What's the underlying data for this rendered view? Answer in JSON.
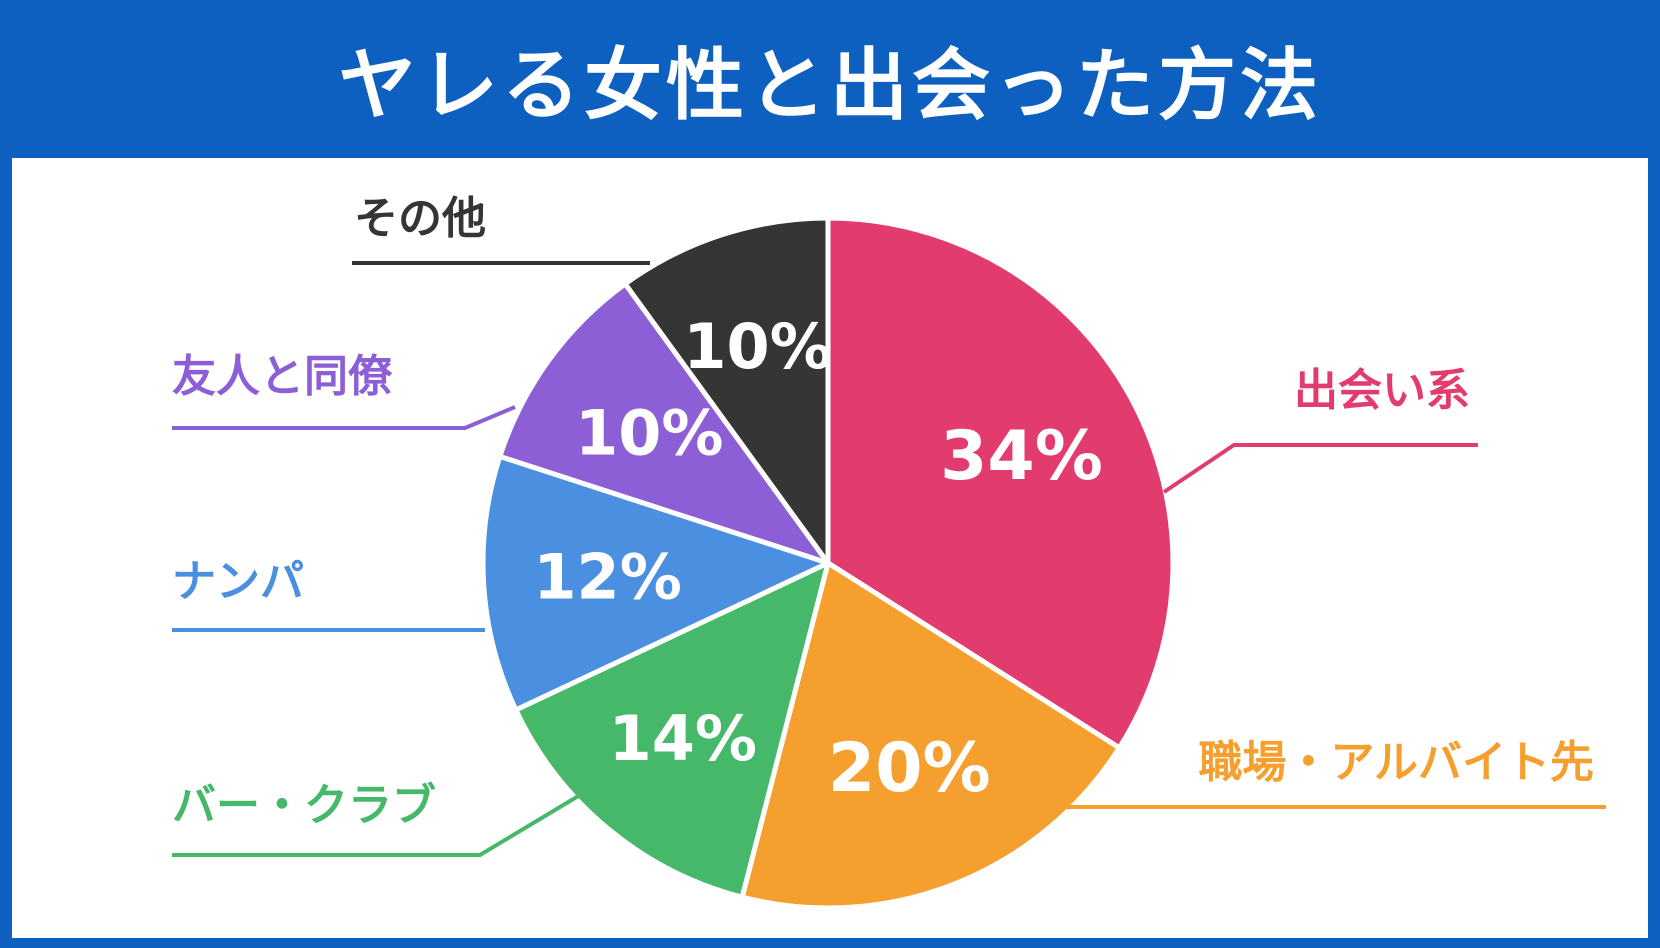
{
  "title": "ヤレる女性と出会った方法",
  "colors": {
    "header": "#0d5fc0",
    "panel": "#ffffff"
  },
  "chart_data": {
    "type": "pie",
    "title": "ヤレる女性と出会った方法",
    "start": "top",
    "direction": "clockwise",
    "slices": [
      {
        "label": "出会い系",
        "value": 34,
        "value_label": "34%",
        "color": "#e23b6e"
      },
      {
        "label": "職場・アルバイト先",
        "value": 20,
        "value_label": "20%",
        "color": "#f5a02e"
      },
      {
        "label": "バー・クラブ",
        "value": 14,
        "value_label": "14%",
        "color": "#46b86a"
      },
      {
        "label": "ナンパ",
        "value": 12,
        "value_label": "12%",
        "color": "#4a8fe0"
      },
      {
        "label": "友人と同僚",
        "value": 10,
        "value_label": "10%",
        "color": "#8d5fd6"
      },
      {
        "label": "その他",
        "value": 10,
        "value_label": "10%",
        "color": "#353535"
      }
    ]
  }
}
